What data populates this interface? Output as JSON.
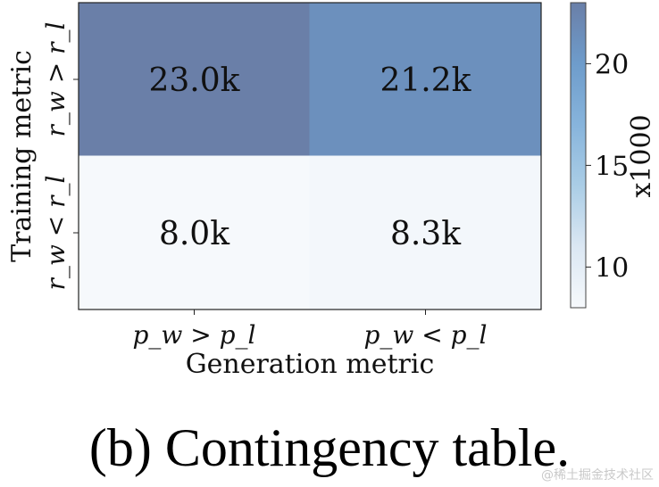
{
  "chart_data": {
    "type": "heatmap",
    "title": "",
    "xlabel": "Generation metric",
    "ylabel": "Training metric",
    "x_categories": [
      "p_w > p_l",
      "p_w < p_l"
    ],
    "y_categories": [
      "r_w > r_l",
      "r_w < r_l"
    ],
    "values": [
      [
        23.0,
        21.2
      ],
      [
        8.0,
        8.3
      ]
    ],
    "annotations": [
      [
        "23.0k",
        "21.2k"
      ],
      [
        "8.0k",
        "8.3k"
      ]
    ],
    "colorbar": {
      "label": "x1000",
      "range": [
        8.0,
        23.0
      ],
      "ticks": [
        10,
        15,
        20
      ],
      "tick_labels": [
        "10",
        "15",
        "20"
      ]
    },
    "colormap": [
      "#f6f9fc",
      "#dbe7f3",
      "#aacde6",
      "#87b4dc",
      "#6e9ccb",
      "#6a7fa8"
    ]
  },
  "caption": "(b) Contingency table.",
  "watermark": "@稀土掘金技术社区"
}
